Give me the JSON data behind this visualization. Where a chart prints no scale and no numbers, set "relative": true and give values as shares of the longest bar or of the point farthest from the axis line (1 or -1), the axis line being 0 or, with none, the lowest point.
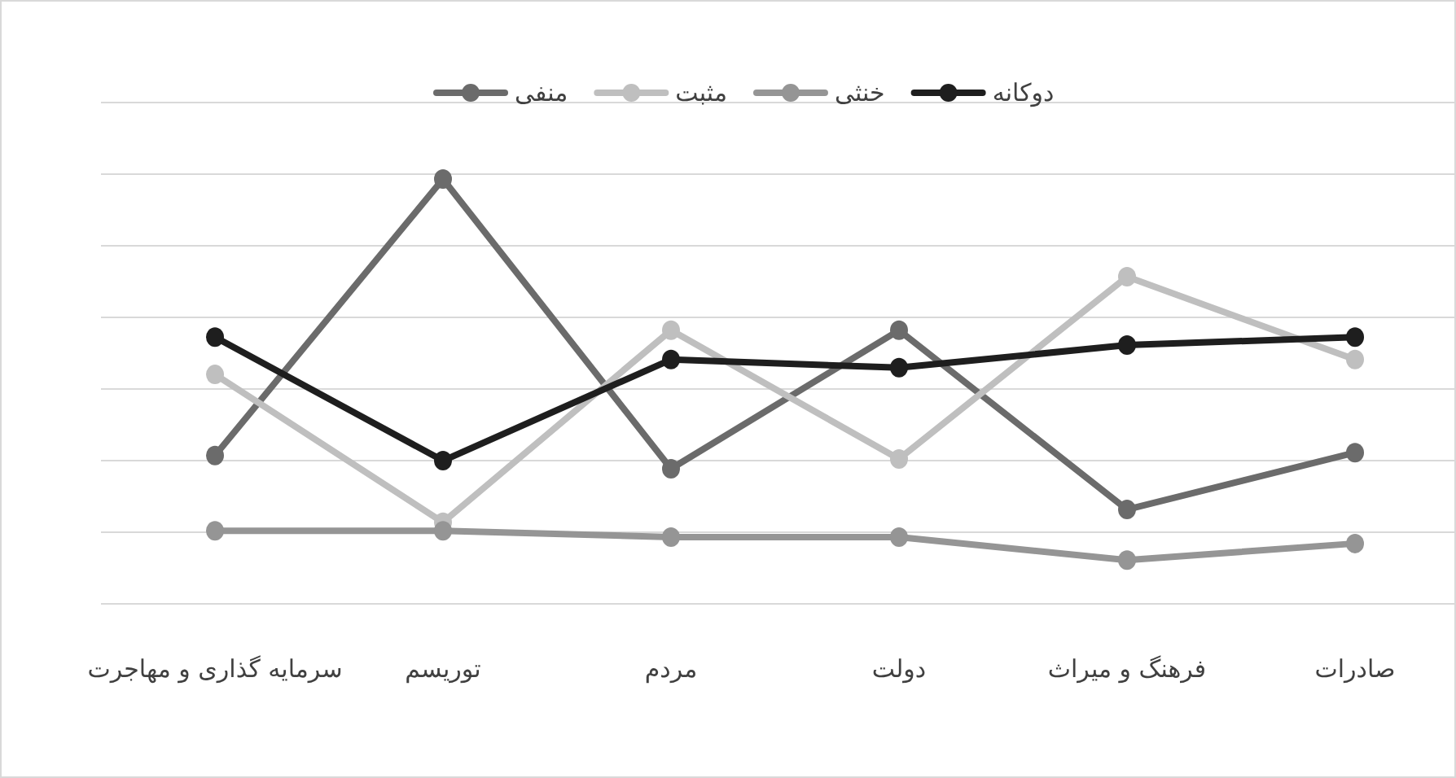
{
  "chart_data": {
    "type": "line",
    "relative": true,
    "categories": [
      "سرمایه گذاری و مهاجرت",
      "توریسم",
      "مردم",
      "دولت",
      "فرهنگ و میراث",
      "صادرات"
    ],
    "series": [
      {
        "name": "منفی",
        "color": "#6b6b6b",
        "values": [
          0.349,
          1,
          0.318,
          0.644,
          0.222,
          0.356
        ]
      },
      {
        "name": "مثبت",
        "color": "#bfbfbf",
        "values": [
          0.54,
          0.192,
          0.644,
          0.341,
          0.77,
          0.575
        ]
      },
      {
        "name": "خنثی",
        "color": "#959595",
        "values": [
          0.172,
          0.172,
          0.157,
          0.157,
          0.103,
          0.142
        ]
      },
      {
        "name": "دوکانه",
        "color": "#1e1e1e",
        "values": [
          0.628,
          0.337,
          0.575,
          0.556,
          0.609,
          0.628
        ]
      }
    ],
    "marker": "circle",
    "grid": "y",
    "legend": "top"
  }
}
